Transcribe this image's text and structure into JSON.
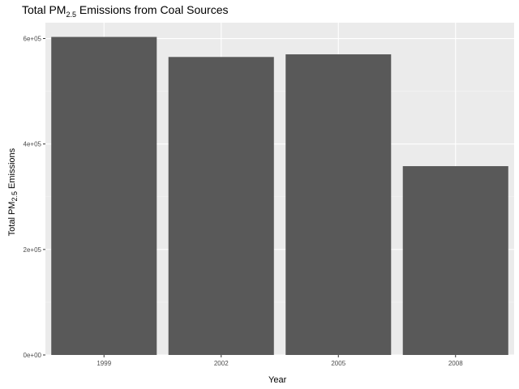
{
  "chart_data": {
    "type": "bar",
    "title": {
      "prefix": "Total PM",
      "subscript": "2.5",
      "suffix": " Emissions from Coal Sources"
    },
    "xlabel": "Year",
    "ylabel": {
      "prefix": "Total PM",
      "subscript": "2.5",
      "suffix": " Emissions"
    },
    "categories": [
      "1999",
      "2002",
      "2005",
      "2008"
    ],
    "values": [
      603000,
      565000,
      570000,
      358000
    ],
    "ylim": [
      0,
      630000
    ],
    "yticks": [
      0,
      200000,
      400000,
      600000
    ],
    "ytick_labels": [
      "0e+00",
      "2e+05",
      "4e+05",
      "6e+05"
    ],
    "grid": true,
    "legend": "none",
    "colors": {
      "bar": "#595959",
      "panel": "#ebebeb",
      "grid_major": "#ffffff",
      "grid_minor": "#f5f5f5"
    }
  }
}
